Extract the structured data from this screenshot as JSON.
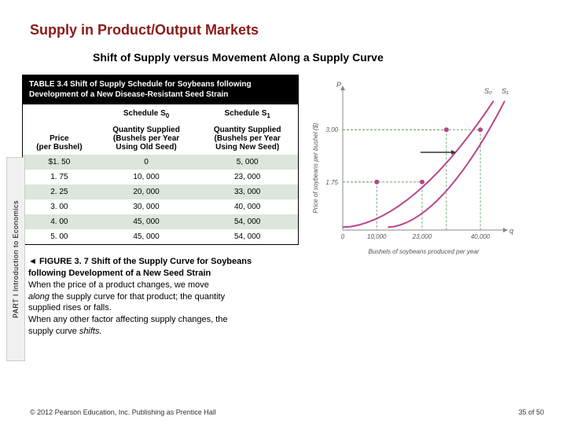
{
  "title": "Supply in Product/Output Markets",
  "subtitle": "Shift of Supply versus Movement Along a Supply Curve",
  "sidebar": "PART I Introduction to Economics",
  "table": {
    "caption": "TABLE 3.4  Shift of Supply Schedule for Soybeans following Development of a New Disease-Resistant Seed Strain",
    "schedule0": "Schedule S",
    "schedule0_sub": "0",
    "schedule1": "Schedule S",
    "schedule1_sub": "1",
    "col0": "Price\n(per Bushel)",
    "col1": "Quantity Supplied\n(Bushels per Year\nUsing Old Seed)",
    "col2": "Quantity Supplied\n(Bushels per Year\nUsing New Seed)",
    "rows": [
      [
        "$1. 50",
        "0",
        "5, 000"
      ],
      [
        "1. 75",
        "10, 000",
        "23, 000"
      ],
      [
        "2. 25",
        "20, 000",
        "33, 000"
      ],
      [
        "3. 00",
        "30, 000",
        "40, 000"
      ],
      [
        "4. 00",
        "45, 000",
        "54, 000"
      ],
      [
        "5. 00",
        "45, 000",
        "54, 000"
      ]
    ]
  },
  "figure": {
    "label": " FIGURE 3. 7 Shift of the Supply Curve for Soybeans",
    "strain": "following Development of a New Seed Strain",
    "body1": "When the price of a product changes, we move",
    "body2a": "along ",
    "body2b": "the supply curve for that product; the quantity",
    "body3": "supplied rises or falls.",
    "body4": "When any other factor affecting supply changes, the",
    "body5a": "supply curve ",
    "body5b": "shifts."
  },
  "chart": {
    "y_axis_label": "Price of soybeans per bushel ($)",
    "x_axis_label": "Bushels of soybeans produced per year",
    "y_label_top": "P",
    "x_label_right": "q",
    "curve0_label": "S₀",
    "curve1_label": "S₁",
    "y_ticks": [
      {
        "pos": 0.71,
        "label": "3.00"
      },
      {
        "pos": 0.34,
        "label": "1.75"
      }
    ],
    "x_ticks": [
      {
        "pos": 0.0,
        "label": "0"
      },
      {
        "pos": 0.21,
        "label": "10,000"
      },
      {
        "pos": 0.49,
        "label": "23,000"
      },
      {
        "pos": 0.85,
        "label": "40,000"
      }
    ],
    "points": [
      {
        "x": 0.21,
        "y": 0.34,
        "color": "#b8468c"
      },
      {
        "x": 0.64,
        "y": 0.71,
        "color": "#b8468c"
      },
      {
        "x": 0.49,
        "y": 0.34,
        "color": "#b8468c"
      },
      {
        "x": 0.85,
        "y": 0.71,
        "color": "#b8468c"
      }
    ],
    "curve_color": "#b8468c",
    "guide_color": "#7aa87a",
    "axis_color": "#888888",
    "arrow_color": "#333333"
  },
  "footer": {
    "copyright": "© 2012 Pearson Education, Inc. Publishing as Prentice Hall",
    "page": "35 of 50"
  }
}
